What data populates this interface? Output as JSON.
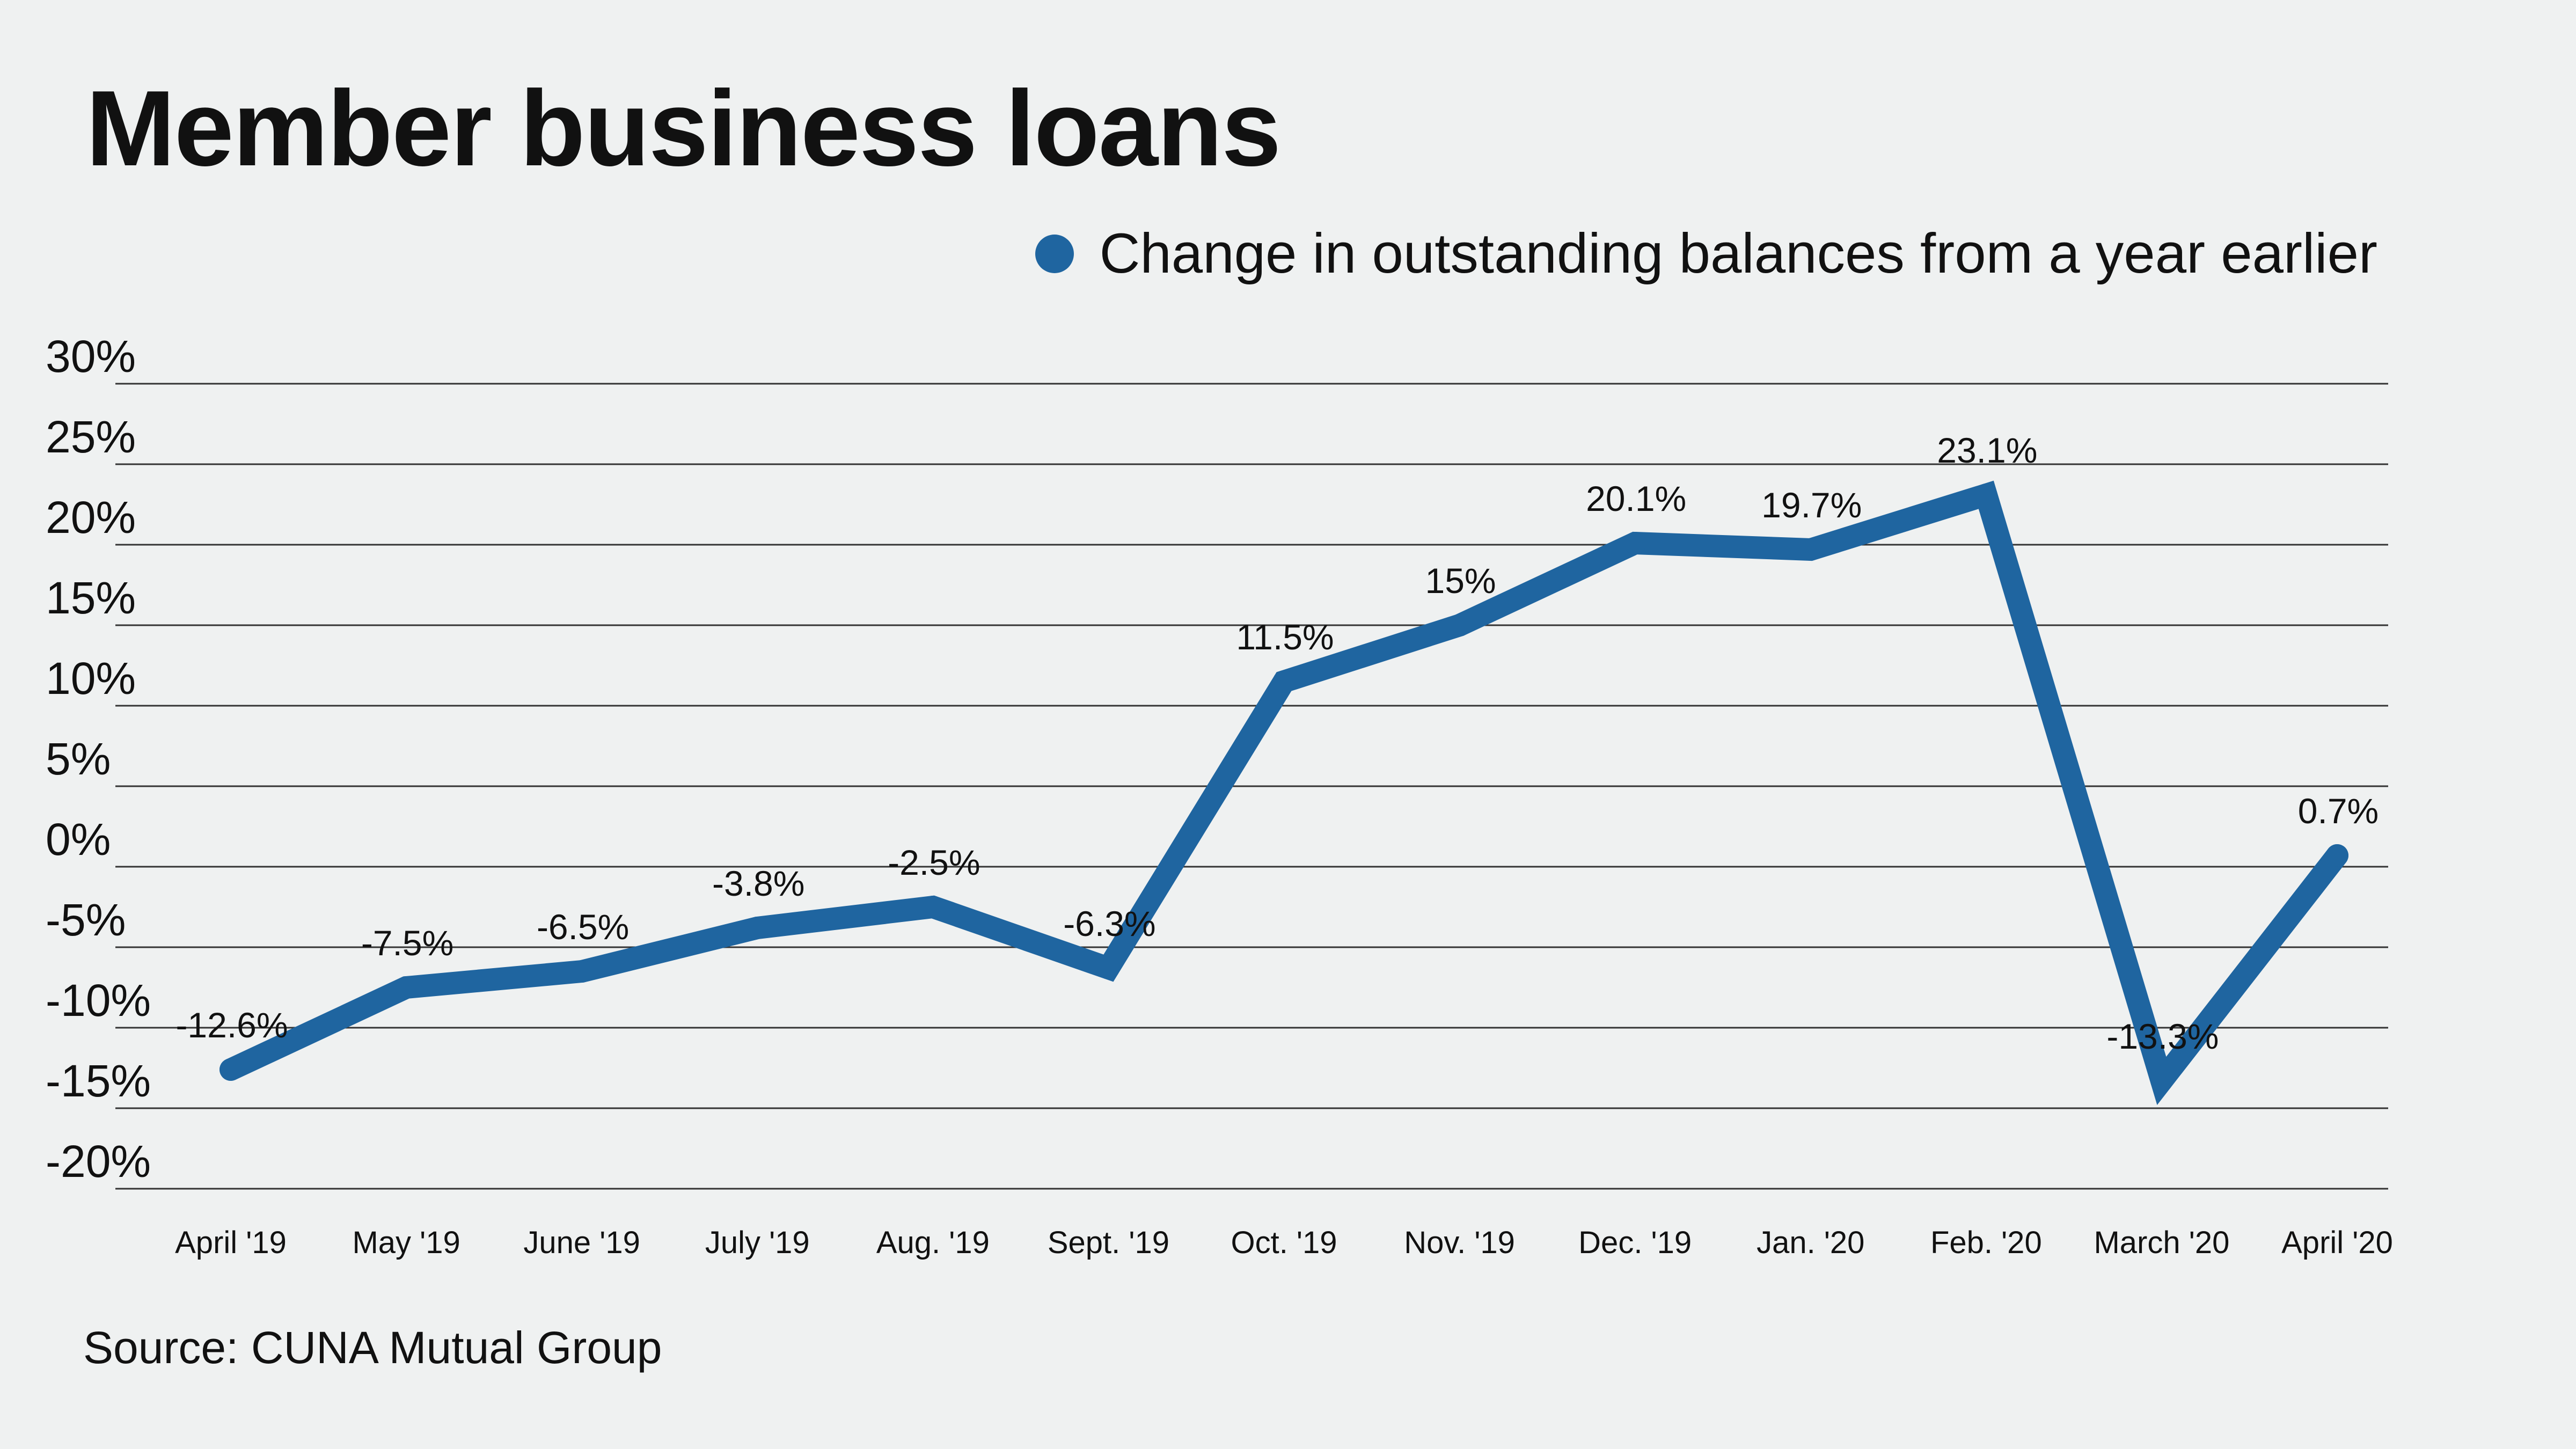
{
  "title": "Member business loans",
  "legend_label": "Change in outstanding balances from a year earlier",
  "source": "Source: CUNA Mutual Group",
  "colors": {
    "series": "#1f65a0",
    "grid": "#333333",
    "text": "#111111",
    "background": "#eff1f1"
  },
  "chart_data": {
    "type": "line",
    "title": "Member business loans",
    "categories": [
      "April '19",
      "May '19",
      "June '19",
      "July '19",
      "Aug. '19",
      "Sept. '19",
      "Oct. '19",
      "Nov. '19",
      "Dec. '19",
      "Jan. '20",
      "Feb. '20",
      "March '20",
      "April '20"
    ],
    "series": [
      {
        "name": "Change in outstanding balances from a year earlier",
        "values": [
          -12.6,
          -7.5,
          -6.5,
          -3.8,
          -2.5,
          -6.3,
          11.5,
          15,
          20.1,
          19.7,
          23.1,
          -13.3,
          0.7
        ],
        "labels": [
          "-12.6%",
          "-7.5%",
          "-6.5%",
          "-3.8%",
          "-2.5%",
          "-6.3%",
          "11.5%",
          "15%",
          "20.1%",
          "19.7%",
          "23.1%",
          "-13.3%",
          "0.7%"
        ]
      }
    ],
    "yticks": [
      "30%",
      "25%",
      "20%",
      "15%",
      "10%",
      "5%",
      "0%",
      "-5%",
      "-10%",
      "-15%",
      "-20%"
    ],
    "ylim": [
      -20,
      30
    ],
    "grid": true,
    "legend_position": "top-right"
  }
}
